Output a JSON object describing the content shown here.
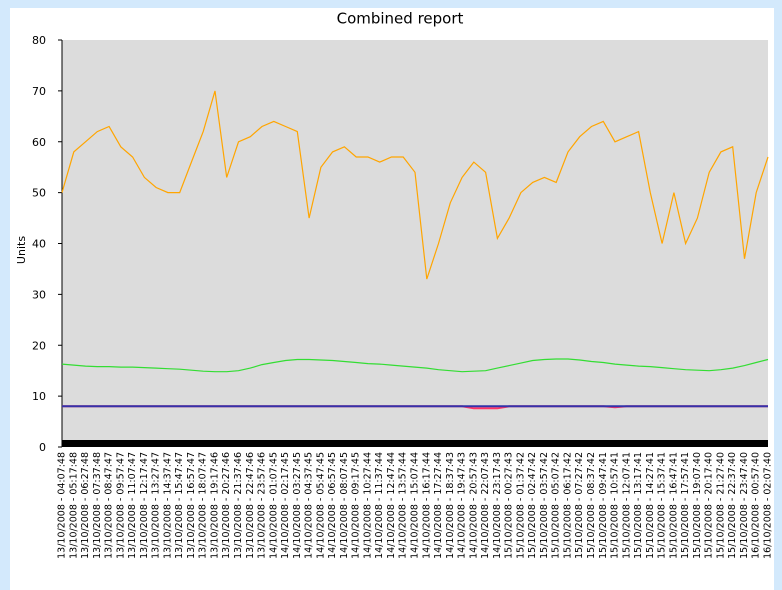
{
  "chart_data": {
    "type": "line",
    "title": "Combined report",
    "y_label": "Units",
    "categories": [
      "13/10/2008 - 04:07:48",
      "13/10/2008 - 05:17:48",
      "13/10/2008 - 06:27:48",
      "13/10/2008 - 07:37:48",
      "13/10/2008 - 08:47:47",
      "13/10/2008 - 09:57:47",
      "13/10/2008 - 11:07:47",
      "13/10/2008 - 12:17:47",
      "13/10/2008 - 13:27:47",
      "13/10/2008 - 14:37:47",
      "13/10/2008 - 15:47:47",
      "13/10/2008 - 16:57:47",
      "13/10/2008 - 18:07:47",
      "13/10/2008 - 19:17:46",
      "13/10/2008 - 20:27:46",
      "13/10/2008 - 21:37:46",
      "13/10/2008 - 22:47:46",
      "13/10/2008 - 23:57:46",
      "14/10/2008 - 01:07:45",
      "14/10/2008 - 02:17:45",
      "14/10/2008 - 03:27:45",
      "14/10/2008 - 04:37:45",
      "14/10/2008 - 05:47:45",
      "14/10/2008 - 06:57:45",
      "14/10/2008 - 08:07:45",
      "14/10/2008 - 09:17:45",
      "14/10/2008 - 10:27:44",
      "14/10/2008 - 11:37:44",
      "14/10/2008 - 12:47:44",
      "14/10/2008 - 13:57:44",
      "14/10/2008 - 15:07:44",
      "14/10/2008 - 16:17:44",
      "14/10/2008 - 17:27:44",
      "14/10/2008 - 18:37:43",
      "14/10/2008 - 19:47:43",
      "14/10/2008 - 20:57:43",
      "14/10/2008 - 22:07:43",
      "14/10/2008 - 23:17:43",
      "15/10/2008 - 00:27:43",
      "15/10/2008 - 01:37:42",
      "15/10/2008 - 02:47:42",
      "15/10/2008 - 03:57:42",
      "15/10/2008 - 05:07:42",
      "15/10/2008 - 06:17:42",
      "15/10/2008 - 07:27:42",
      "15/10/2008 - 08:37:42",
      "15/10/2008 - 09:47:41",
      "15/10/2008 - 10:57:41",
      "15/10/2008 - 12:07:41",
      "15/10/2008 - 13:17:41",
      "15/10/2008 - 14:27:41",
      "15/10/2008 - 15:37:41",
      "15/10/2008 - 16:47:41",
      "15/10/2008 - 17:57:41",
      "15/10/2008 - 19:07:40",
      "15/10/2008 - 20:17:40",
      "15/10/2008 - 21:27:40",
      "15/10/2008 - 22:37:40",
      "15/10/2008 - 23:47:40",
      "16/10/2008 - 00:57:40",
      "16/10/2008 - 02:07:40"
    ],
    "series": [
      {
        "color": "#ffa500",
        "values": [
          50,
          58,
          60,
          62,
          63,
          59,
          57,
          53,
          51,
          50,
          50,
          56,
          62,
          70,
          53,
          60,
          61,
          63,
          64,
          63,
          62,
          45,
          55,
          58,
          59,
          57,
          57,
          56,
          57,
          57,
          54,
          33,
          40,
          48,
          53,
          56,
          54,
          41,
          45,
          50,
          52,
          53,
          52,
          58,
          61,
          63,
          64,
          60,
          61,
          62,
          50,
          40,
          50,
          40,
          45,
          54,
          58,
          59,
          37,
          50,
          57
        ]
      },
      {
        "color": "#33dd33",
        "values": [
          16.3,
          16.1,
          15.9,
          15.8,
          15.8,
          15.7,
          15.7,
          15.6,
          15.5,
          15.4,
          15.3,
          15.1,
          14.9,
          14.8,
          14.8,
          15,
          15.5,
          16.2,
          16.6,
          17,
          17.2,
          17.2,
          17.1,
          17,
          16.8,
          16.6,
          16.4,
          16.3,
          16.1,
          15.9,
          15.7,
          15.5,
          15.2,
          15,
          14.8,
          14.9,
          15,
          15.5,
          16,
          16.5,
          17,
          17.2,
          17.3,
          17.3,
          17.1,
          16.8,
          16.6,
          16.3,
          16.1,
          15.9,
          15.8,
          15.6,
          15.4,
          15.2,
          15.1,
          15,
          15.2,
          15.5,
          16,
          16.6,
          17.2
        ]
      },
      {
        "color": "#ff3366",
        "values": [
          8,
          8,
          8,
          8,
          8,
          8,
          8,
          8,
          8,
          8,
          8,
          8,
          8,
          8,
          8,
          8,
          8,
          8,
          8,
          8,
          8,
          8,
          8,
          8,
          8,
          8,
          8,
          8,
          8,
          8,
          8,
          8,
          8,
          8,
          8,
          7.6,
          7.6,
          7.6,
          8,
          8,
          8,
          8,
          8,
          8,
          8,
          8,
          8,
          7.8,
          8,
          8,
          8,
          8,
          8,
          8,
          8,
          8,
          8,
          8,
          8,
          8,
          8
        ]
      },
      {
        "color": "#3333aa",
        "values": [
          8,
          8,
          8,
          8,
          8,
          8,
          8,
          8,
          8,
          8,
          8,
          8,
          8,
          8,
          8,
          8,
          8,
          8,
          8,
          8,
          8,
          8,
          8,
          8,
          8,
          8,
          8,
          8,
          8,
          8,
          8,
          8,
          8,
          8,
          8,
          8,
          8,
          8,
          8,
          8,
          8,
          8,
          8,
          8,
          8,
          8,
          8,
          8,
          8,
          8,
          8,
          8,
          8,
          8,
          8,
          8,
          8,
          8,
          8,
          8,
          8
        ]
      }
    ],
    "ylim": [
      0,
      80
    ],
    "yticks": [
      0,
      10,
      20,
      30,
      40,
      50,
      60,
      70,
      80
    ],
    "grid": false
  }
}
